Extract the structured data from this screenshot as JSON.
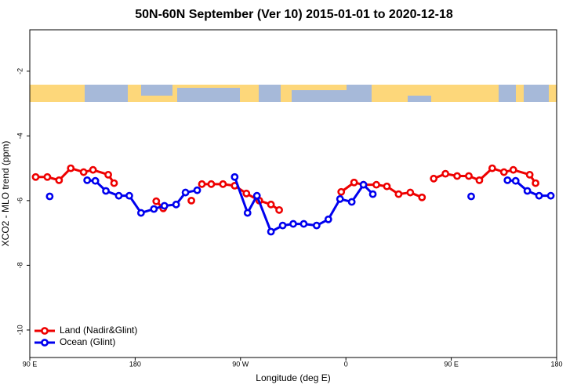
{
  "chart_data": {
    "type": "line",
    "title": "50N-60N September (Ver 10)   2015-01-01 to 2020-12-18",
    "x_label": "Longitude (deg E)",
    "y_label": "XCO2 - MLO trend (ppm)",
    "xlim": [
      90,
      540
    ],
    "ylim": [
      -10.85,
      -0.72
    ],
    "xticks": [
      {
        "value": 90,
        "label": "90 E"
      },
      180,
      {
        "value": 270,
        "label": "90 W"
      },
      {
        "value": 360,
        "label": "0"
      },
      {
        "value": 450,
        "label": "90 E"
      },
      {
        "value": 540,
        "label": "180"
      }
    ],
    "yticks": [
      -10,
      -8,
      -6,
      -4,
      -2
    ],
    "legend_position": "bottom-left",
    "series": [
      {
        "name": "Land (Nadir&Glint)",
        "color": "#ee0000",
        "x": [
          95,
          105,
          115,
          125,
          136,
          144,
          157,
          162,
          null,
          198,
          204,
          null,
          228,
          null,
          237,
          245,
          255,
          265,
          275,
          286,
          296,
          303,
          null,
          356,
          367,
          375,
          386,
          395,
          405,
          415,
          425,
          null,
          435,
          445,
          455,
          465,
          474,
          485,
          495,
          503,
          517,
          522
        ],
        "values": [
          -5.27,
          -5.27,
          -5.37,
          -5.0,
          -5.12,
          -5.05,
          -5.2,
          -5.46,
          null,
          -6.02,
          -6.24,
          null,
          -6.0,
          null,
          -5.49,
          -5.49,
          -5.49,
          -5.54,
          -5.78,
          -6.0,
          -6.12,
          -6.29,
          null,
          -5.73,
          -5.44,
          -5.51,
          -5.51,
          -5.56,
          -5.8,
          -5.75,
          -5.9,
          null,
          -5.32,
          -5.17,
          -5.24,
          -5.24,
          -5.37,
          -5.0,
          -5.12,
          -5.05,
          -5.2,
          -5.46
        ]
      },
      {
        "name": "Ocean (Glint)",
        "color": "#0000ee",
        "x": [
          107,
          null,
          139,
          146,
          155,
          166,
          175,
          185,
          196,
          205,
          215,
          223,
          233,
          null,
          265,
          276,
          284,
          296,
          306,
          315,
          324,
          335,
          345,
          355,
          365,
          375,
          383,
          null,
          467,
          null,
          498,
          505,
          515,
          525,
          535
        ],
        "values": [
          -5.87,
          null,
          -5.37,
          -5.39,
          -5.7,
          -5.85,
          -5.85,
          -6.38,
          -6.26,
          -6.16,
          -6.12,
          -5.75,
          -5.68,
          null,
          -5.27,
          -6.38,
          -5.85,
          -6.96,
          -6.77,
          -6.72,
          -6.72,
          -6.77,
          -6.58,
          -5.95,
          -6.04,
          -5.51,
          -5.8,
          null,
          -5.87,
          null,
          -5.37,
          -5.39,
          -5.7,
          -5.85,
          -5.85
        ]
      }
    ]
  }
}
